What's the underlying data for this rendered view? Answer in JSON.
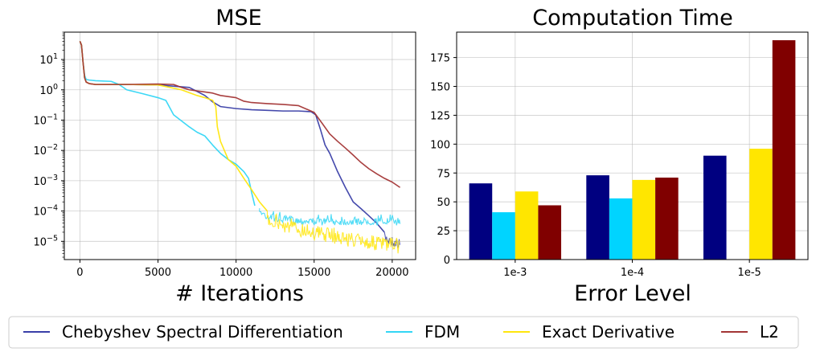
{
  "chart_data": [
    {
      "type": "line",
      "title": "MSE",
      "xlabel": "# Iterations",
      "ylabel": "",
      "yscale": "log",
      "xlim": [
        -1000,
        21500
      ],
      "ylim": [
        2.5e-06,
        80
      ],
      "xticks": [
        0,
        5000,
        10000,
        15000,
        20000
      ],
      "xtick_labels": [
        "0",
        "5000",
        "10000",
        "15000",
        "20000"
      ],
      "yticks": [
        1e-05,
        0.0001,
        0.001,
        0.01,
        0.1,
        1,
        10
      ],
      "ytick_labels": [
        {
          "base": "10",
          "exp": "−5"
        },
        {
          "base": "10",
          "exp": "−4"
        },
        {
          "base": "10",
          "exp": "−3"
        },
        {
          "base": "10",
          "exp": "−2"
        },
        {
          "base": "10",
          "exp": "−1"
        },
        {
          "base": "10",
          "exp": "0"
        },
        {
          "base": "10",
          "exp": "1"
        }
      ],
      "grid": true,
      "series": [
        {
          "name": "Chebyshev Spectral Differentiation",
          "color": "#3a3fa8",
          "noisy_from": 19500,
          "noise_decades": 0.35,
          "x": [
            0,
            100,
            200,
            300,
            400,
            600,
            1000,
            3000,
            5000,
            7000,
            8000,
            8500,
            9000,
            10000,
            11000,
            12000,
            13000,
            14000,
            14800,
            15100,
            15400,
            15700,
            16000,
            16500,
            17000,
            17500,
            18000,
            18500,
            19000,
            19500,
            20000,
            20500
          ],
          "y": [
            40,
            30,
            8,
            2.5,
            1.8,
            1.6,
            1.5,
            1.5,
            1.45,
            1.2,
            0.65,
            0.4,
            0.28,
            0.24,
            0.22,
            0.21,
            0.2,
            0.2,
            0.19,
            0.15,
            0.05,
            0.015,
            0.008,
            0.002,
            0.0006,
            0.0002,
            0.00012,
            7e-05,
            4e-05,
            2e-05,
            1.5e-05,
            1.2e-05
          ]
        },
        {
          "name": "FDM",
          "color": "#33d6f5",
          "noisy_from": 11500,
          "noise_decades": 0.25,
          "x": [
            0,
            100,
            200,
            300,
            400,
            600,
            1000,
            2000,
            2500,
            3000,
            4000,
            5000,
            5500,
            6000,
            7000,
            7500,
            8000,
            8500,
            9000,
            9500,
            10000,
            10500,
            10800,
            11000,
            11200,
            12000,
            13000,
            14000,
            15000,
            16000,
            17000,
            18000,
            19000,
            20000,
            20500
          ],
          "y": [
            40,
            30,
            8,
            3,
            2.2,
            2.1,
            2.0,
            1.9,
            1.5,
            1.0,
            0.75,
            0.55,
            0.45,
            0.15,
            0.06,
            0.04,
            0.03,
            0.015,
            0.008,
            0.005,
            0.0035,
            0.002,
            0.0012,
            0.0004,
            0.00015,
            9e-05,
            7e-05,
            6.5e-05,
            6e-05,
            6e-05,
            6e-05,
            6e-05,
            6e-05,
            6e-05,
            6e-05
          ]
        },
        {
          "name": "Exact Derivative",
          "color": "#ffe60d",
          "noisy_from": 12000,
          "noise_decades": 0.5,
          "x": [
            0,
            100,
            200,
            300,
            400,
            600,
            1000,
            3000,
            5000,
            6500,
            7500,
            8000,
            8500,
            8700,
            8800,
            9000,
            9500,
            10000,
            10500,
            11000,
            11500,
            12000,
            13000,
            14000,
            15000,
            16000,
            17000,
            18000,
            19000,
            20000,
            20500
          ],
          "y": [
            40,
            30,
            8,
            2.5,
            1.8,
            1.6,
            1.5,
            1.5,
            1.45,
            1.0,
            0.65,
            0.55,
            0.45,
            0.28,
            0.06,
            0.02,
            0.005,
            0.003,
            0.0012,
            0.0005,
            0.0002,
            0.0001,
            6e-05,
            4.5e-05,
            3.5e-05,
            2.8e-05,
            2.2e-05,
            1.8e-05,
            1.5e-05,
            1.3e-05,
            1.2e-05
          ]
        },
        {
          "name": "L2",
          "color": "#a33535",
          "noisy_from": null,
          "noise_decades": 0,
          "x": [
            0,
            100,
            200,
            300,
            400,
            600,
            1000,
            3000,
            5000,
            6000,
            6500,
            7000,
            8000,
            8500,
            9000,
            10000,
            10500,
            11000,
            12000,
            13000,
            14000,
            15000,
            15500,
            16000,
            16500,
            17000,
            17500,
            18000,
            18500,
            19000,
            19500,
            20000,
            20500
          ],
          "y": [
            40,
            30,
            8,
            2.5,
            1.8,
            1.6,
            1.5,
            1.5,
            1.55,
            1.5,
            1.2,
            1.0,
            0.85,
            0.78,
            0.65,
            0.55,
            0.42,
            0.38,
            0.35,
            0.33,
            0.3,
            0.18,
            0.08,
            0.035,
            0.02,
            0.012,
            0.007,
            0.004,
            0.0025,
            0.0017,
            0.0012,
            0.0009,
            0.0006
          ]
        }
      ]
    },
    {
      "type": "bar",
      "title": "Computation Time",
      "xlabel": "Error Level",
      "ylabel": "",
      "categories": [
        "1e-3",
        "1e-4",
        "1e-5"
      ],
      "ylim": [
        0,
        197
      ],
      "yticks": [
        0,
        25,
        50,
        75,
        100,
        125,
        150,
        175
      ],
      "grid": true,
      "series": [
        {
          "name": "Chebyshev Spectral Differentiation",
          "color": "#000080",
          "values": [
            66,
            73,
            90
          ]
        },
        {
          "name": "FDM",
          "color": "#00d4ff",
          "values": [
            41,
            53,
            null
          ]
        },
        {
          "name": "Exact Derivative",
          "color": "#ffe600",
          "values": [
            59,
            69,
            96
          ]
        },
        {
          "name": "L2",
          "color": "#800000",
          "values": [
            47,
            71,
            190
          ]
        }
      ]
    }
  ],
  "legend": {
    "placement": "bottom",
    "items": [
      {
        "label": "Chebyshev Spectral Differentiation",
        "color": "#3a3fa8"
      },
      {
        "label": "FDM",
        "color": "#33d6f5"
      },
      {
        "label": "Exact Derivative",
        "color": "#ffe60d"
      },
      {
        "label": "L2",
        "color": "#a33535"
      }
    ]
  }
}
